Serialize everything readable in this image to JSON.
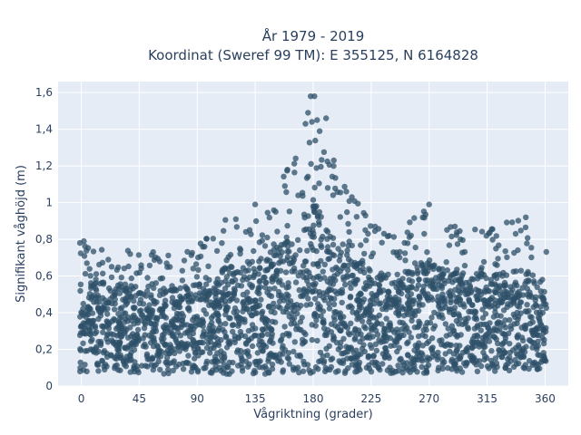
{
  "chart_data": {
    "type": "scatter",
    "title": [
      "År 1979 - 2019",
      "Koordinat (Sweref 99 TM): E 355125, N 6164828"
    ],
    "xlabel": "Vågriktning (grader)",
    "ylabel": "Signifikant våghöjd (m)",
    "xlim": [
      -18,
      378
    ],
    "ylim": [
      0,
      1.66
    ],
    "xticks": [
      0,
      45,
      90,
      135,
      180,
      225,
      270,
      315,
      360
    ],
    "xtick_labels": [
      "0",
      "45",
      "90",
      "135",
      "180",
      "225",
      "270",
      "315",
      "360"
    ],
    "yticks": [
      0,
      0.2,
      0.4,
      0.6,
      0.8,
      1.0,
      1.2,
      1.4,
      1.6
    ],
    "ytick_labels": [
      "0",
      "0,2",
      "0,4",
      "0,6",
      "0,8",
      "1",
      "1,2",
      "1,4",
      "1,6"
    ],
    "grid": true,
    "colors": {
      "points": "#2e5068",
      "plot_bg": "#e5ecf6",
      "grid": "#ffffff",
      "text": "#2a3f5f"
    },
    "envelope_upper": [
      {
        "x": 0,
        "y": 0.79
      },
      {
        "x": 20,
        "y": 0.77
      },
      {
        "x": 45,
        "y": 0.74
      },
      {
        "x": 70,
        "y": 0.72
      },
      {
        "x": 90,
        "y": 0.76
      },
      {
        "x": 105,
        "y": 0.9
      },
      {
        "x": 120,
        "y": 0.92
      },
      {
        "x": 135,
        "y": 1.0
      },
      {
        "x": 150,
        "y": 1.15
      },
      {
        "x": 160,
        "y": 1.18
      },
      {
        "x": 170,
        "y": 1.3
      },
      {
        "x": 178,
        "y": 1.58
      },
      {
        "x": 185,
        "y": 1.45
      },
      {
        "x": 195,
        "y": 1.23
      },
      {
        "x": 210,
        "y": 1.05
      },
      {
        "x": 225,
        "y": 0.9
      },
      {
        "x": 245,
        "y": 0.85
      },
      {
        "x": 270,
        "y": 0.99
      },
      {
        "x": 290,
        "y": 0.87
      },
      {
        "x": 315,
        "y": 0.85
      },
      {
        "x": 340,
        "y": 0.92
      },
      {
        "x": 360,
        "y": 0.78
      }
    ],
    "envelope_lower": [
      {
        "x": 0,
        "y": 0.08
      },
      {
        "x": 90,
        "y": 0.06
      },
      {
        "x": 180,
        "y": 0.07
      },
      {
        "x": 270,
        "y": 0.07
      },
      {
        "x": 360,
        "y": 0.09
      }
    ],
    "notable_points": [
      {
        "x": 178,
        "y": 1.58
      },
      {
        "x": 181,
        "y": 1.58
      },
      {
        "x": 176,
        "y": 1.49
      },
      {
        "x": 183,
        "y": 1.45
      },
      {
        "x": 190,
        "y": 1.46
      },
      {
        "x": 179,
        "y": 1.44
      },
      {
        "x": 174,
        "y": 1.43
      },
      {
        "x": 185,
        "y": 1.39
      },
      {
        "x": 196,
        "y": 1.23
      },
      {
        "x": 160,
        "y": 1.18
      },
      {
        "x": 270,
        "y": 0.99
      },
      {
        "x": 265,
        "y": 0.92
      },
      {
        "x": 345,
        "y": 0.92
      },
      {
        "x": 2,
        "y": 0.79
      },
      {
        "x": -1,
        "y": 0.78
      },
      {
        "x": 120,
        "y": 0.91
      },
      {
        "x": 135,
        "y": 0.99
      },
      {
        "x": 290,
        "y": 0.87
      },
      {
        "x": 210,
        "y": 1.03
      },
      {
        "x": 228,
        "y": 0.87
      }
    ]
  }
}
